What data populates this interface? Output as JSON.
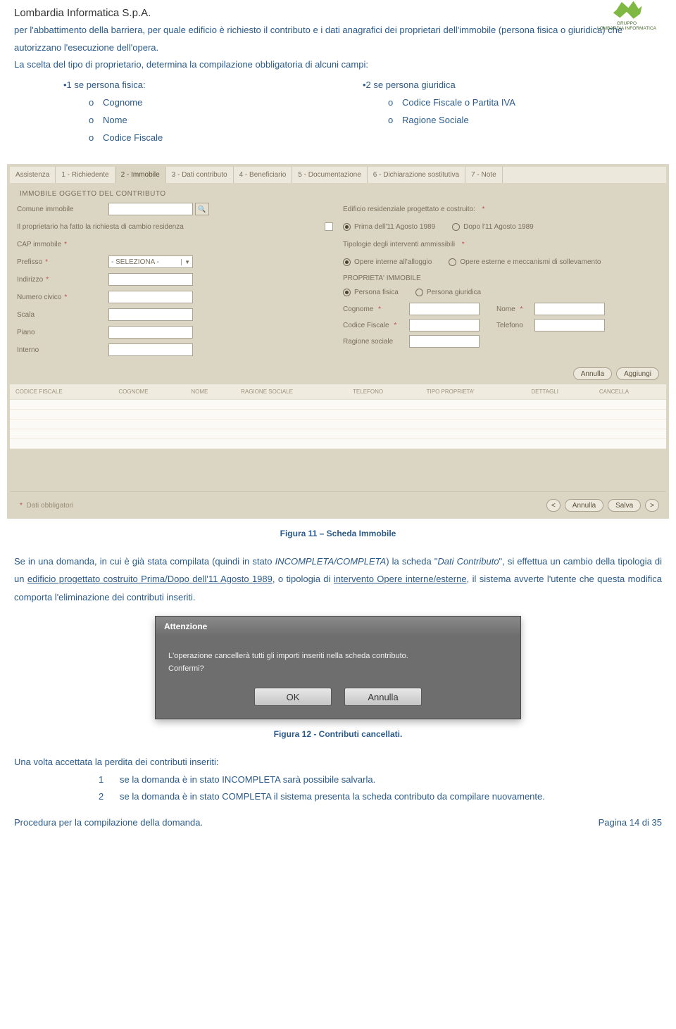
{
  "company": "Lombardia Informatica S.p.A.",
  "logo_label_top": "GRUPPO",
  "logo_label": "LOMBARDIA INFORMATICA",
  "intro": {
    "p1a": "per l'abbattimento della barriera,  per quale edificio è richiesto il contributo e i dati anagrafici dei proprietari dell'immobile (persona fisica o giuridica) che autorizzano l'esecuzione dell'opera.",
    "p2": "La scelta del tipo di proprietario, determina la compilazione obbligatoria di alcuni campi:"
  },
  "bullets": {
    "left_head": "•1    se persona fisica:",
    "left_items": [
      "Cognome",
      "Nome",
      "Codice Fiscale"
    ],
    "right_head": "•2    se persona giuridica",
    "right_items": [
      "Codice Fiscale o Partita IVA",
      "Ragione Sociale"
    ]
  },
  "tabs": [
    "Assistenza",
    "1 - Richiedente",
    "2 - Immobile",
    "3 - Dati contributo",
    "4 - Beneficiario",
    "5 - Documentazione",
    "6 - Dichiarazione sostitutiva",
    "7 - Note"
  ],
  "form": {
    "title": "IMMOBILE OGGETTO DEL CONTRIBUTO",
    "left": {
      "comune": "Comune immobile",
      "cambio": "Il proprietario ha fatto la richiesta di cambio residenza",
      "cap": "CAP immobile",
      "prefisso": "Prefisso",
      "prefisso_val": "- SELEZIONA -",
      "indirizzo": "Indirizzo",
      "civico": "Numero civico",
      "scala": "Scala",
      "piano": "Piano",
      "interno": "Interno"
    },
    "right": {
      "edif_label": "Edificio residenziale progettato e costruito:",
      "r1a": "Prima dell'11 Agosto 1989",
      "r1b": "Dopo l'11 Agosto 1989",
      "tip_label": "Tipologie degli interventi ammissibili",
      "r2a": "Opere interne all'alloggio",
      "r2b": "Opere esterne e meccanismi di sollevamento",
      "propr": "PROPRIETA' IMMOBILE",
      "pf": "Persona fisica",
      "pg": "Persona giuridica",
      "cognome": "Cognome",
      "nome": "Nome",
      "cf": "Codice Fiscale",
      "tel": "Telefono",
      "ragione": "Ragione sociale"
    },
    "btn_annulla": "Annulla",
    "btn_aggiungi": "Aggiungi",
    "tbl_cols": [
      "CODICE FISCALE",
      "COGNOME",
      "NOME",
      "RAGIONE SOCIALE",
      "TELEFONO",
      "TIPO PROPRIETA'",
      "DETTAGLI",
      "CANCELLA"
    ],
    "footer_note": "Dati obbligatori",
    "btn_back": "<",
    "btn_annulla2": "Annulla",
    "btn_salva": "Salva",
    "btn_fwd": ">"
  },
  "fig11": "Figura 11 – Scheda Immobile",
  "para2": {
    "a": "Se in una domanda, in cui è già stata compilata (quindi in stato ",
    "i1": "INCOMPLETA/COMPLETA",
    "b": ") la scheda \"",
    "i2": "Dati Contributo",
    "c": "\", si effettua un cambio della tipologia di un ",
    "u1": "edificio progettato costruito Prima/Dopo dell'11 Agosto 1989",
    "d": ", o tipologia di  ",
    "u2": "intervento  Opere interne/esterne",
    "e": ", il sistema avverte l'utente che questa modifica comporta l'eliminazione dei contributi inseriti."
  },
  "dialog": {
    "title": "Attenzione",
    "msg1": "L'operazione cancellerà tutti gli importi inseriti nella scheda contributo.",
    "msg2": "Confermi?",
    "ok": "OK",
    "cancel": "Annulla"
  },
  "fig12": "Figura 12 - Contributi cancellati.",
  "para3": "Una volta accettata la perdita dei contributi inseriti:",
  "numlist": {
    "1": "se la domanda è in stato INCOMPLETA sarà possibile salvarla.",
    "2": "se la domanda è in stato COMPLETA il sistema presenta la scheda contributo da compilare nuovamente."
  },
  "footer_left": "Procedura per la compilazione della domanda.",
  "footer_right": "Pagina 14 di 35"
}
